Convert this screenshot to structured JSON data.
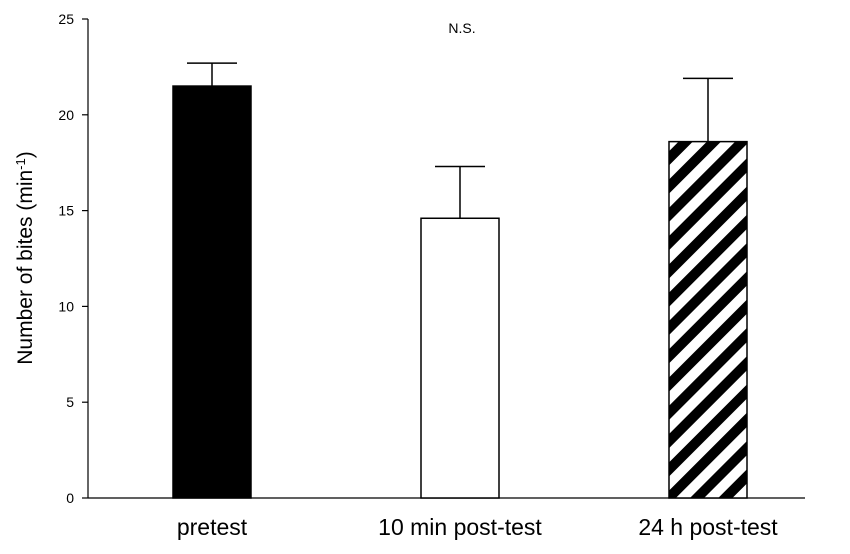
{
  "chart_data": {
    "type": "bar",
    "categories": [
      "pretest",
      "10 min post-test",
      "24 h post-test"
    ],
    "values": [
      21.5,
      14.6,
      18.6
    ],
    "error_upper": [
      22.7,
      17.3,
      21.9
    ],
    "bar_fills": [
      "solid-black",
      "white",
      "diagonal-stripes"
    ],
    "colors": {
      "bar": "#000000",
      "stripe": "#000000",
      "background": "#ffffff"
    },
    "ylabel_main": "Number of bites (min",
    "ylabel_sup": "-1",
    "ylabel_close": ")",
    "annotation": "N.S.",
    "ylim": [
      0,
      25
    ],
    "yticks": [
      0,
      5,
      10,
      15,
      20,
      25
    ],
    "grid": false
  }
}
